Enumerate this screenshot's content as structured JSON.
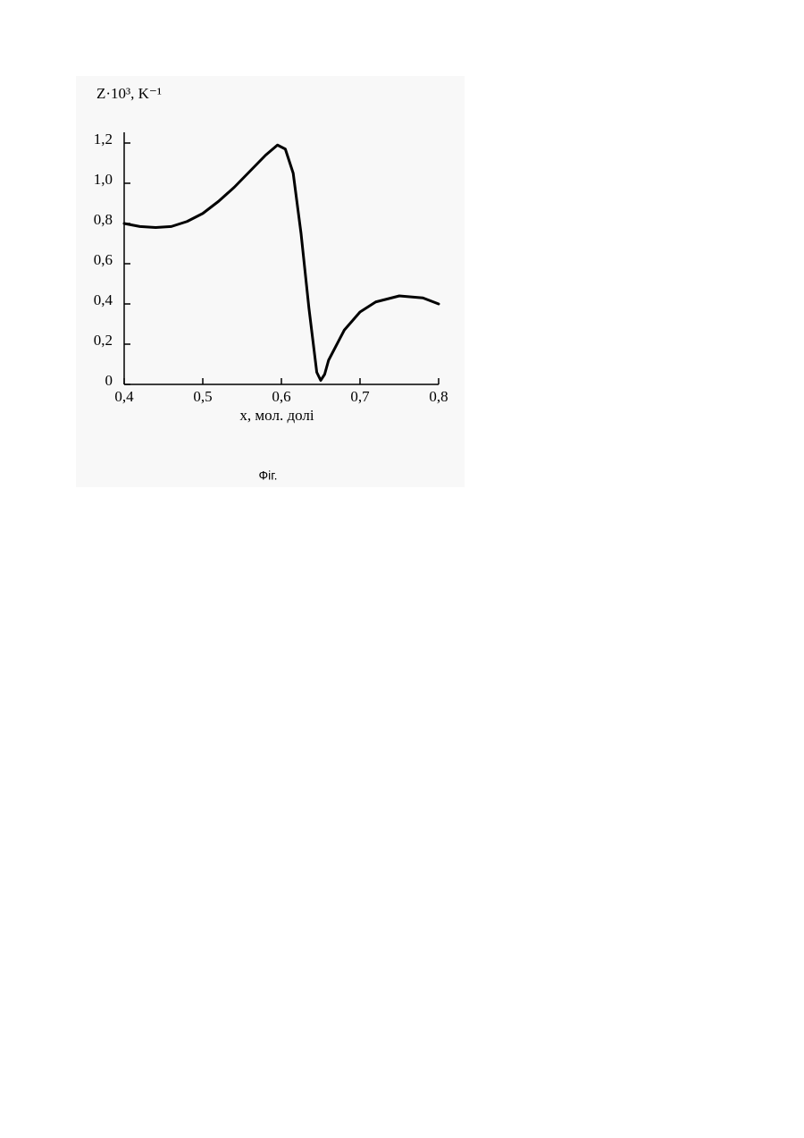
{
  "chart_data": {
    "type": "line",
    "ylabel": "Z·10³, K⁻¹",
    "xlabel": "x, мол. долі",
    "caption": "Фіг.",
    "x": [
      0.4,
      0.42,
      0.44,
      0.46,
      0.48,
      0.5,
      0.52,
      0.54,
      0.56,
      0.58,
      0.595,
      0.605,
      0.615,
      0.625,
      0.635,
      0.645,
      0.65,
      0.655,
      0.66,
      0.68,
      0.7,
      0.72,
      0.75,
      0.78,
      0.8
    ],
    "series": [
      {
        "color": "#000000",
        "values": [
          0.8,
          0.785,
          0.78,
          0.785,
          0.81,
          0.85,
          0.91,
          0.98,
          1.06,
          1.14,
          1.19,
          1.17,
          1.05,
          0.75,
          0.38,
          0.06,
          0.02,
          0.05,
          0.12,
          0.27,
          0.36,
          0.41,
          0.44,
          0.43,
          0.4
        ]
      }
    ],
    "xlim": [
      0.4,
      0.8
    ],
    "ylim": [
      0,
      1.2
    ],
    "xticks": [
      {
        "value": 0.4,
        "label": "0,4"
      },
      {
        "value": 0.5,
        "label": "0,5"
      },
      {
        "value": 0.6,
        "label": "0,6"
      },
      {
        "value": 0.7,
        "label": "0,7"
      },
      {
        "value": 0.8,
        "label": "0,8"
      }
    ],
    "yticks": [
      0,
      {
        "value": 0.2,
        "label": "0,2"
      },
      {
        "value": 0.4,
        "label": "0,4"
      },
      {
        "value": 0.6,
        "label": "0,6"
      },
      {
        "value": 0.8,
        "label": "0,8"
      },
      {
        "value": 1.0,
        "label": "1,0"
      },
      {
        "value": 1.2,
        "label": "1,2"
      }
    ],
    "grid": false
  }
}
